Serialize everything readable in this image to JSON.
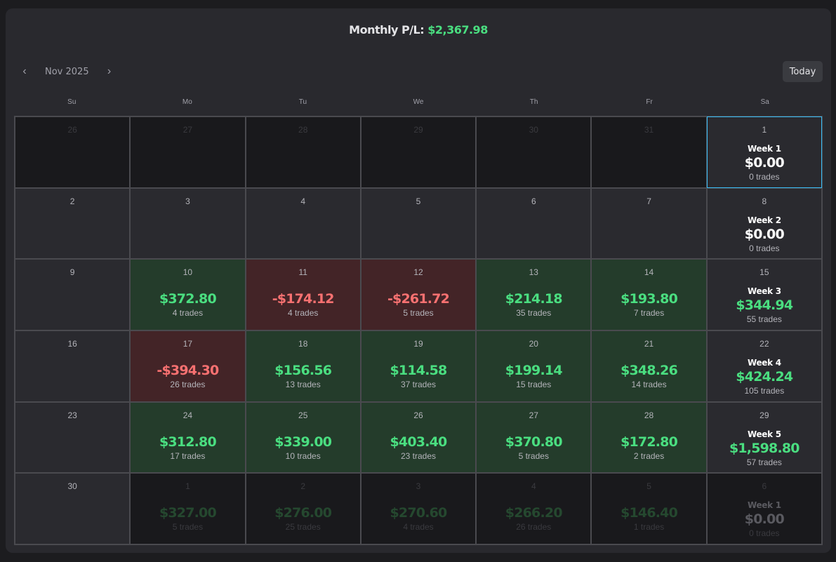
{
  "header": {
    "label": "Monthly P/L:",
    "value": "$2,367.98"
  },
  "nav": {
    "prev_icon": "‹",
    "month": "Nov 2025",
    "next_icon": "›",
    "today_label": "Today"
  },
  "days_of_week": [
    "Su",
    "Mo",
    "Tu",
    "We",
    "Th",
    "Fr",
    "Sa"
  ],
  "weeks": [
    {
      "days": [
        {
          "d": "26",
          "state": "out"
        },
        {
          "d": "27",
          "state": "out"
        },
        {
          "d": "28",
          "state": "out"
        },
        {
          "d": "29",
          "state": "out"
        },
        {
          "d": "30",
          "state": "out"
        },
        {
          "d": "31",
          "state": "out"
        },
        {
          "d": "1",
          "state": "week",
          "selected": true,
          "week": "Week 1",
          "amount": "$0.00",
          "sign": "zero",
          "trades": "0 trades"
        }
      ]
    },
    {
      "days": [
        {
          "d": "2",
          "state": "empty"
        },
        {
          "d": "3",
          "state": "empty"
        },
        {
          "d": "4",
          "state": "empty"
        },
        {
          "d": "5",
          "state": "empty"
        },
        {
          "d": "6",
          "state": "empty"
        },
        {
          "d": "7",
          "state": "empty"
        },
        {
          "d": "8",
          "state": "week",
          "week": "Week 2",
          "amount": "$0.00",
          "sign": "zero",
          "trades": "0 trades"
        }
      ]
    },
    {
      "days": [
        {
          "d": "9",
          "state": "empty"
        },
        {
          "d": "10",
          "state": "win",
          "amount": "$372.80",
          "trades": "4 trades"
        },
        {
          "d": "11",
          "state": "loss",
          "amount": "-$174.12",
          "trades": "4 trades"
        },
        {
          "d": "12",
          "state": "loss",
          "amount": "-$261.72",
          "trades": "5 trades"
        },
        {
          "d": "13",
          "state": "win",
          "amount": "$214.18",
          "trades": "35 trades"
        },
        {
          "d": "14",
          "state": "win",
          "amount": "$193.80",
          "trades": "7 trades"
        },
        {
          "d": "15",
          "state": "week",
          "week": "Week 3",
          "amount": "$344.94",
          "sign": "pos",
          "trades": "55 trades"
        }
      ]
    },
    {
      "days": [
        {
          "d": "16",
          "state": "empty"
        },
        {
          "d": "17",
          "state": "loss",
          "amount": "-$394.30",
          "trades": "26 trades"
        },
        {
          "d": "18",
          "state": "win",
          "amount": "$156.56",
          "trades": "13 trades"
        },
        {
          "d": "19",
          "state": "win",
          "amount": "$114.58",
          "trades": "37 trades"
        },
        {
          "d": "20",
          "state": "win",
          "amount": "$199.14",
          "trades": "15 trades"
        },
        {
          "d": "21",
          "state": "win",
          "amount": "$348.26",
          "trades": "14 trades"
        },
        {
          "d": "22",
          "state": "week",
          "week": "Week 4",
          "amount": "$424.24",
          "sign": "pos",
          "trades": "105 trades"
        }
      ]
    },
    {
      "days": [
        {
          "d": "23",
          "state": "empty"
        },
        {
          "d": "24",
          "state": "win",
          "amount": "$312.80",
          "trades": "17 trades"
        },
        {
          "d": "25",
          "state": "win",
          "amount": "$339.00",
          "trades": "10 trades"
        },
        {
          "d": "26",
          "state": "win",
          "amount": "$403.40",
          "trades": "23 trades"
        },
        {
          "d": "27",
          "state": "win",
          "amount": "$370.80",
          "trades": "5 trades"
        },
        {
          "d": "28",
          "state": "win",
          "amount": "$172.80",
          "trades": "2 trades"
        },
        {
          "d": "29",
          "state": "week",
          "week": "Week 5",
          "amount": "$1,598.80",
          "sign": "pos",
          "trades": "57 trades"
        }
      ]
    },
    {
      "days": [
        {
          "d": "30",
          "state": "empty"
        },
        {
          "d": "1",
          "state": "out",
          "amount": "$327.00",
          "trades": "5 trades"
        },
        {
          "d": "2",
          "state": "out",
          "amount": "$276.00",
          "trades": "25 trades"
        },
        {
          "d": "3",
          "state": "out",
          "amount": "$270.60",
          "trades": "4 trades"
        },
        {
          "d": "4",
          "state": "out",
          "amount": "$266.20",
          "trades": "26 trades"
        },
        {
          "d": "5",
          "state": "out",
          "amount": "$146.40",
          "trades": "1 trades"
        },
        {
          "d": "6",
          "state": "outweek",
          "week": "Week 1",
          "amount": "$0.00",
          "sign": "zero",
          "trades": "0 trades"
        }
      ]
    }
  ],
  "colors": {
    "positive": "#4ade80",
    "negative": "#f87171",
    "win_bg": "#243c2b",
    "loss_bg": "#432427",
    "selected": "#38bdf8"
  }
}
